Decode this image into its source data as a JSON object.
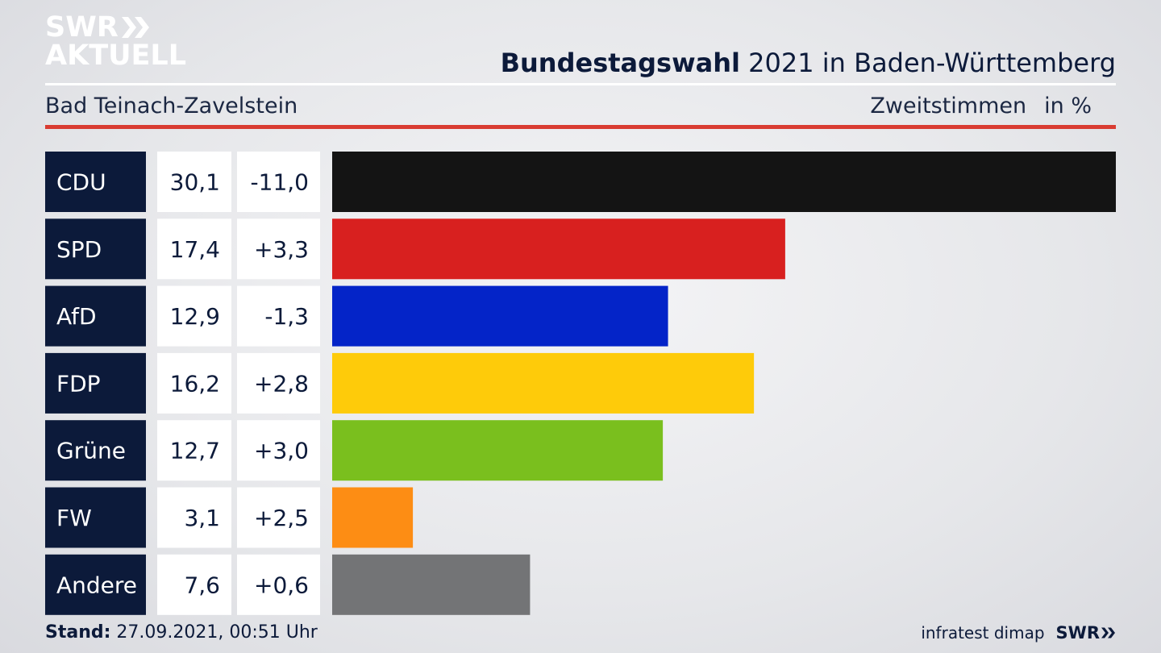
{
  "brand": {
    "logo_line1": "SWR",
    "logo_line2": "AKTUELL",
    "footer_logo": "SWR"
  },
  "header": {
    "title_bold": "Bundestagswahl",
    "title_rest": " 2021 in Baden-Württemberg",
    "subtitle": "Bad Teinach-Zavelstein",
    "measure": "Zweitstimmen",
    "unit": "in %"
  },
  "footer": {
    "stand_label": "Stand:",
    "stand_value": " 27.09.2021, 00:51 Uhr",
    "source": "infratest dimap"
  },
  "colors": {
    "label_bg": "#0c1a3a",
    "accent_red": "#d93c32"
  },
  "chart_data": {
    "type": "bar",
    "orientation": "horizontal",
    "categories": [
      "CDU",
      "SPD",
      "AfD",
      "FDP",
      "Grüne",
      "FW",
      "Andere"
    ],
    "values": [
      30.1,
      17.4,
      12.9,
      16.2,
      12.7,
      3.1,
      7.6
    ],
    "value_labels": [
      "30,1",
      "17,4",
      "12,9",
      "16,2",
      "12,7",
      "3,1",
      "7,6"
    ],
    "change_labels": [
      "-11,0",
      "+3,3",
      "-1,3",
      "+2,8",
      "+3,0",
      "+2,5",
      "+0,6"
    ],
    "changes": [
      -11.0,
      3.3,
      -1.3,
      2.8,
      3.0,
      2.5,
      0.6
    ],
    "bar_colors": [
      "#141414",
      "#d8201f",
      "#0424c8",
      "#fecb0a",
      "#7abf1e",
      "#fd8d14",
      "#737476"
    ],
    "xlim": [
      0,
      30.1
    ],
    "grid": false,
    "legend": "none"
  }
}
